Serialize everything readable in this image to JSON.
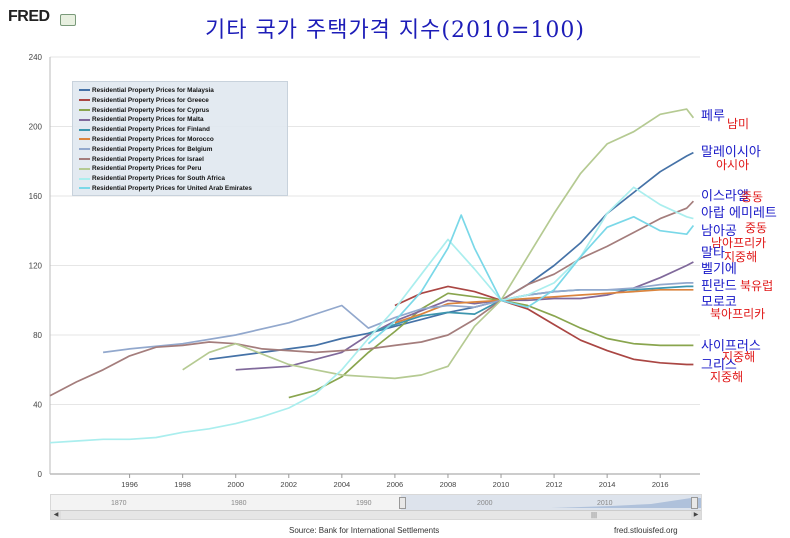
{
  "brand": "FRED",
  "title": "기타 국가 주택가격 지수(2010=100)",
  "source": "Source: Bank for International Settlements",
  "url": "fred.stlouisfed.org",
  "navigator": {
    "years": [
      "1870",
      "1980",
      "1990",
      "2000",
      "2010"
    ],
    "grip": "|||"
  },
  "chart_data": {
    "type": "line",
    "title": "기타 국가 주택가격 지수(2010=100)",
    "xlabel": "",
    "ylabel": "",
    "xlim": [
      1993,
      2017.5
    ],
    "ylim": [
      0,
      240
    ],
    "grid": true,
    "legend_position": "top-left",
    "yticks": [
      0,
      40,
      80,
      120,
      160,
      200,
      240
    ],
    "xticks": [
      1996,
      1998,
      2000,
      2002,
      2004,
      2006,
      2008,
      2010,
      2012,
      2014,
      2016
    ],
    "series": [
      {
        "name": "Residential Property Prices for Malaysia",
        "color": "#4572a7",
        "points": [
          [
            1999,
            66
          ],
          [
            2000,
            68
          ],
          [
            2001,
            70
          ],
          [
            2002,
            72
          ],
          [
            2003,
            74
          ],
          [
            2004,
            78
          ],
          [
            2005,
            81
          ],
          [
            2006,
            85
          ],
          [
            2007,
            89
          ],
          [
            2008,
            93
          ],
          [
            2009,
            96
          ],
          [
            2010,
            100
          ],
          [
            2011,
            109
          ],
          [
            2012,
            120
          ],
          [
            2013,
            133
          ],
          [
            2014,
            150
          ],
          [
            2015,
            162
          ],
          [
            2016,
            174
          ],
          [
            2017,
            183
          ],
          [
            2017.25,
            185
          ]
        ]
      },
      {
        "name": "Residential Property Prices for Greece",
        "color": "#aa4643",
        "points": [
          [
            2006,
            97
          ],
          [
            2007,
            104
          ],
          [
            2008,
            108
          ],
          [
            2009,
            105
          ],
          [
            2010,
            100
          ],
          [
            2011,
            95
          ],
          [
            2012,
            86
          ],
          [
            2013,
            77
          ],
          [
            2014,
            71
          ],
          [
            2015,
            66
          ],
          [
            2016,
            64
          ],
          [
            2017,
            63
          ],
          [
            2017.25,
            63
          ]
        ]
      },
      {
        "name": "Residential Property Prices for Cyprus",
        "color": "#89a54e",
        "points": [
          [
            2002,
            44
          ],
          [
            2003,
            48
          ],
          [
            2004,
            56
          ],
          [
            2005,
            70
          ],
          [
            2006,
            82
          ],
          [
            2007,
            95
          ],
          [
            2008,
            104
          ],
          [
            2009,
            102
          ],
          [
            2010,
            100
          ],
          [
            2011,
            97
          ],
          [
            2012,
            91
          ],
          [
            2013,
            84
          ],
          [
            2014,
            78
          ],
          [
            2015,
            75
          ],
          [
            2016,
            74
          ],
          [
            2017,
            74
          ],
          [
            2017.25,
            74
          ]
        ]
      },
      {
        "name": "Residential Property Prices for Malta",
        "color": "#80699b",
        "points": [
          [
            2000,
            60
          ],
          [
            2002,
            62
          ],
          [
            2004,
            70
          ],
          [
            2005,
            80
          ],
          [
            2006,
            88
          ],
          [
            2007,
            94
          ],
          [
            2008,
            100
          ],
          [
            2009,
            98
          ],
          [
            2010,
            100
          ],
          [
            2011,
            100
          ],
          [
            2012,
            101
          ],
          [
            2013,
            101
          ],
          [
            2014,
            103
          ],
          [
            2015,
            107
          ],
          [
            2016,
            113
          ],
          [
            2017,
            120
          ],
          [
            2017.25,
            122
          ]
        ]
      },
      {
        "name": "Residential Property Prices for Finland",
        "color": "#3d96ae",
        "points": [
          [
            2005,
            81
          ],
          [
            2006,
            86
          ],
          [
            2007,
            91
          ],
          [
            2008,
            93
          ],
          [
            2009,
            92
          ],
          [
            2010,
            100
          ],
          [
            2011,
            103
          ],
          [
            2012,
            105
          ],
          [
            2013,
            106
          ],
          [
            2014,
            106
          ],
          [
            2015,
            106
          ],
          [
            2016,
            107
          ],
          [
            2017,
            108
          ],
          [
            2017.25,
            108
          ]
        ]
      },
      {
        "name": "Residential Property Prices for Morocco",
        "color": "#db843d",
        "points": [
          [
            2006,
            87
          ],
          [
            2007,
            92
          ],
          [
            2008,
            98
          ],
          [
            2009,
            99
          ],
          [
            2010,
            100
          ],
          [
            2011,
            101
          ],
          [
            2012,
            102
          ],
          [
            2013,
            103
          ],
          [
            2014,
            104
          ],
          [
            2015,
            105
          ],
          [
            2016,
            106
          ],
          [
            2017,
            106
          ],
          [
            2017.25,
            106
          ]
        ]
      },
      {
        "name": "Residential Property Prices for Belgium",
        "color": "#92a8cd",
        "points": [
          [
            1995,
            70
          ],
          [
            1996,
            72
          ],
          [
            1998,
            75
          ],
          [
            2000,
            80
          ],
          [
            2002,
            87
          ],
          [
            2004,
            97
          ],
          [
            2005,
            84
          ],
          [
            2006,
            90
          ],
          [
            2007,
            95
          ],
          [
            2008,
            97
          ],
          [
            2009,
            96
          ],
          [
            2010,
            100
          ],
          [
            2011,
            103
          ],
          [
            2012,
            105
          ],
          [
            2013,
            106
          ],
          [
            2014,
            106
          ],
          [
            2015,
            107
          ],
          [
            2016,
            109
          ],
          [
            2017,
            110
          ],
          [
            2017.25,
            110
          ]
        ]
      },
      {
        "name": "Residential Property Prices for Israel",
        "color": "#a47d7c",
        "points": [
          [
            1993,
            45
          ],
          [
            1994,
            53
          ],
          [
            1995,
            60
          ],
          [
            1996,
            68
          ],
          [
            1997,
            73
          ],
          [
            1998,
            74
          ],
          [
            1999,
            76
          ],
          [
            2000,
            75
          ],
          [
            2001,
            72
          ],
          [
            2002,
            71
          ],
          [
            2003,
            70
          ],
          [
            2004,
            71
          ],
          [
            2005,
            72
          ],
          [
            2006,
            74
          ],
          [
            2007,
            76
          ],
          [
            2008,
            80
          ],
          [
            2009,
            89
          ],
          [
            2010,
            100
          ],
          [
            2011,
            109
          ],
          [
            2012,
            115
          ],
          [
            2013,
            124
          ],
          [
            2014,
            131
          ],
          [
            2015,
            139
          ],
          [
            2016,
            147
          ],
          [
            2017,
            153
          ],
          [
            2017.25,
            157
          ]
        ]
      },
      {
        "name": "Residential Property Prices for Peru",
        "color": "#b5ca92",
        "points": [
          [
            1998,
            60
          ],
          [
            1999,
            70
          ],
          [
            2000,
            75
          ],
          [
            2001,
            69
          ],
          [
            2002,
            63
          ],
          [
            2003,
            60
          ],
          [
            2004,
            57
          ],
          [
            2005,
            56
          ],
          [
            2006,
            55
          ],
          [
            2007,
            57
          ],
          [
            2008,
            62
          ],
          [
            2009,
            85
          ],
          [
            2010,
            100
          ],
          [
            2011,
            125
          ],
          [
            2012,
            150
          ],
          [
            2013,
            173
          ],
          [
            2014,
            190
          ],
          [
            2015,
            197
          ],
          [
            2016,
            207
          ],
          [
            2017,
            210
          ],
          [
            2017.25,
            205
          ]
        ]
      },
      {
        "name": "Residential Property Prices for South Africa",
        "color": "#aaeeee",
        "points": [
          [
            1993,
            18
          ],
          [
            1994,
            19
          ],
          [
            1995,
            20
          ],
          [
            1996,
            20
          ],
          [
            1997,
            21
          ],
          [
            1998,
            24
          ],
          [
            1999,
            26
          ],
          [
            2000,
            29
          ],
          [
            2001,
            33
          ],
          [
            2002,
            38
          ],
          [
            2003,
            46
          ],
          [
            2004,
            60
          ],
          [
            2005,
            78
          ],
          [
            2006,
            95
          ],
          [
            2007,
            115
          ],
          [
            2008,
            135
          ],
          [
            2009,
            118
          ],
          [
            2010,
            100
          ],
          [
            2011,
            103
          ],
          [
            2012,
            110
          ],
          [
            2013,
            125
          ],
          [
            2014,
            150
          ],
          [
            2015,
            165
          ],
          [
            2016,
            155
          ],
          [
            2017,
            148
          ],
          [
            2017.25,
            147
          ]
        ]
      },
      {
        "name": "Residential Property Prices for United Arab Emirates",
        "color": "#7ad8e8",
        "points": [
          [
            2005,
            75
          ],
          [
            2006,
            88
          ],
          [
            2007,
            105
          ],
          [
            2008,
            130
          ],
          [
            2008.5,
            149
          ],
          [
            2009,
            130
          ],
          [
            2010,
            100
          ],
          [
            2011,
            96
          ],
          [
            2012,
            106
          ],
          [
            2013,
            125
          ],
          [
            2014,
            142
          ],
          [
            2015,
            148
          ],
          [
            2016,
            140
          ],
          [
            2017,
            138
          ],
          [
            2017.25,
            143
          ]
        ]
      }
    ]
  },
  "annotations": [
    {
      "text": "페루",
      "color": "blue"
    },
    {
      "text": "남미",
      "color": "red"
    },
    {
      "text": "말레이시아",
      "color": "blue"
    },
    {
      "text": "아시아",
      "color": "red"
    },
    {
      "text": "이스라엘",
      "color": "blue"
    },
    {
      "text": "중동",
      "color": "red"
    },
    {
      "text": "아랍 에미레트",
      "color": "blue"
    },
    {
      "text": "중동",
      "color": "red"
    },
    {
      "text": "남아공",
      "color": "blue"
    },
    {
      "text": "남아프리카",
      "color": "red"
    },
    {
      "text": "말타",
      "color": "blue"
    },
    {
      "text": "지중해",
      "color": "red"
    },
    {
      "text": "벨기에",
      "color": "blue"
    },
    {
      "text": "핀란드",
      "color": "blue"
    },
    {
      "text": "북유럽",
      "color": "red"
    },
    {
      "text": "모로코",
      "color": "blue"
    },
    {
      "text": "북아프리카",
      "color": "red"
    },
    {
      "text": "사이프러스",
      "color": "blue"
    },
    {
      "text": "지중해",
      "color": "red"
    },
    {
      "text": "그리스",
      "color": "blue"
    },
    {
      "text": "지중해",
      "color": "red"
    }
  ]
}
